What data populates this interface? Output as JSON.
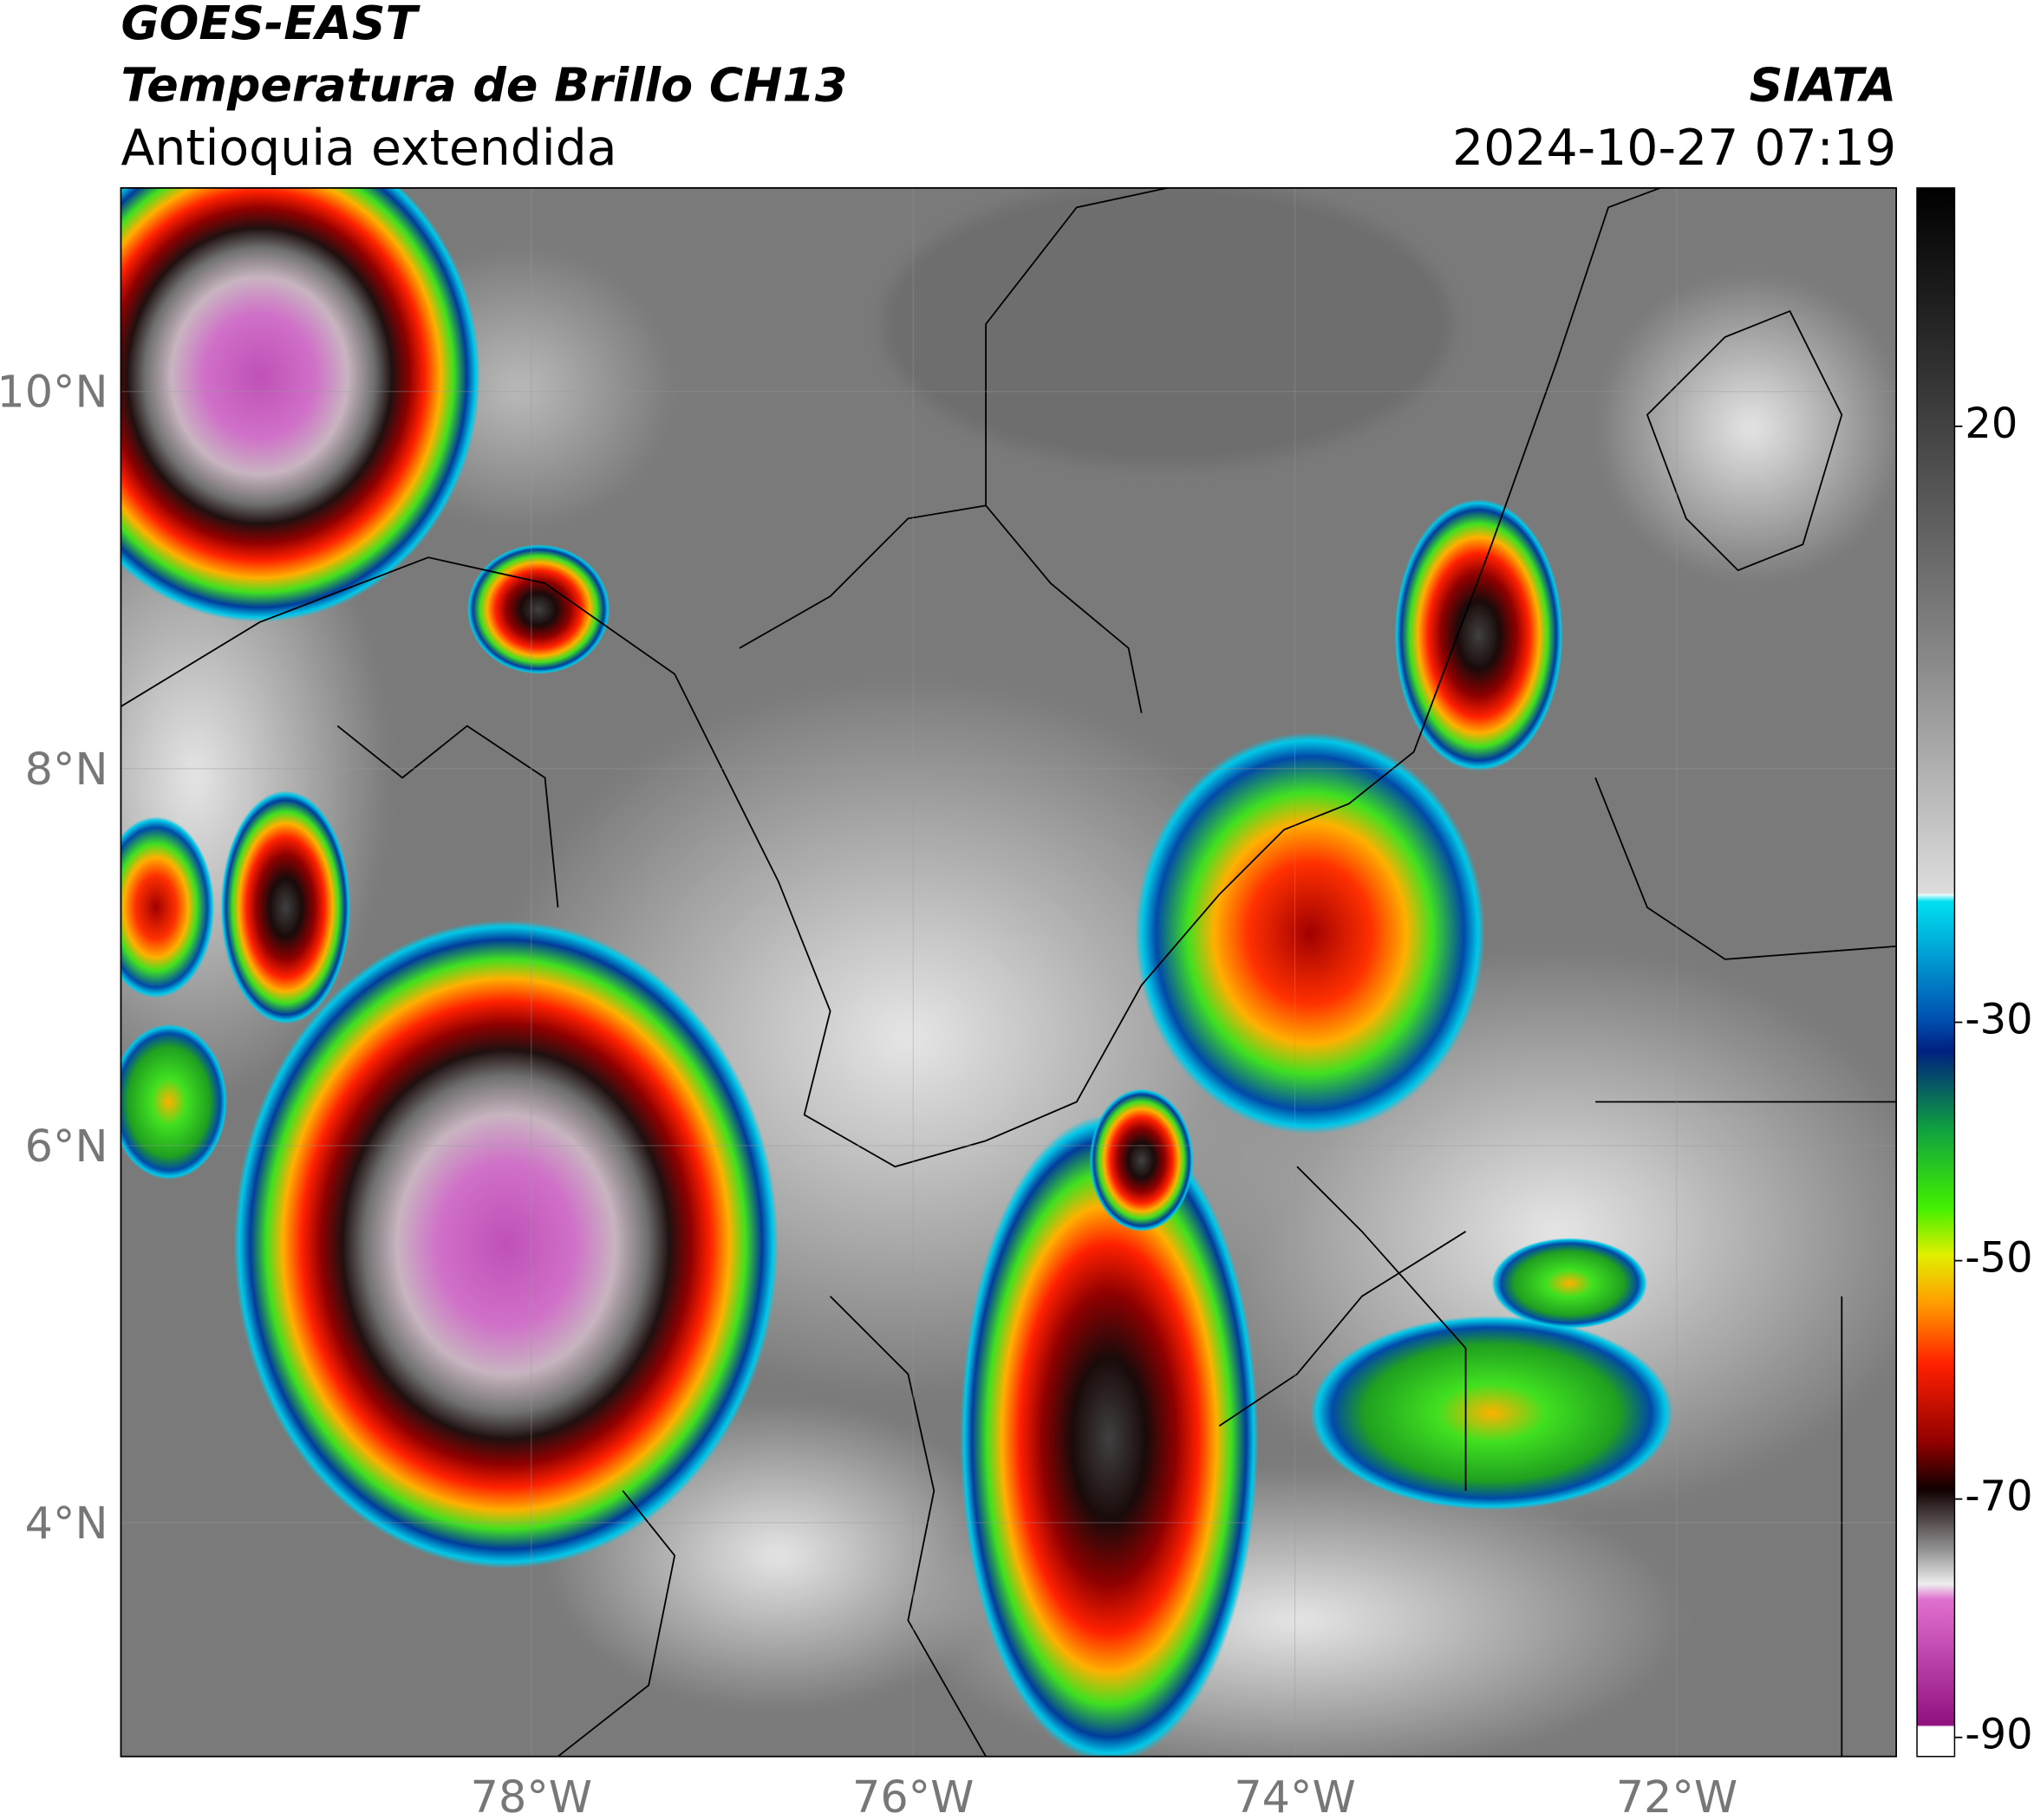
{
  "header": {
    "title_line1": "GOES-EAST",
    "title_line2": "Temperatura de Brillo CH13",
    "region": "Antioquia extendida",
    "source": "SIATA",
    "datetime": "2024-10-27 07:19"
  },
  "map": {
    "lonlim": [
      -80.15,
      -70.85
    ],
    "latlim": [
      2.76,
      11.08
    ],
    "lonticks": [
      {
        "value": -78,
        "label": "78°W"
      },
      {
        "value": -76,
        "label": "76°W"
      },
      {
        "value": -74,
        "label": "74°W"
      },
      {
        "value": -72,
        "label": "72°W"
      }
    ],
    "latticks": [
      {
        "value": 10,
        "label": "10°N"
      },
      {
        "value": 8,
        "label": "8°N"
      },
      {
        "value": 6,
        "label": "6°N"
      },
      {
        "value": 4,
        "label": "4°N"
      }
    ]
  },
  "colorbar": {
    "lim": [
      -91.6,
      40
    ],
    "ticks": [
      20,
      -30,
      -50,
      -70,
      -90
    ]
  }
}
